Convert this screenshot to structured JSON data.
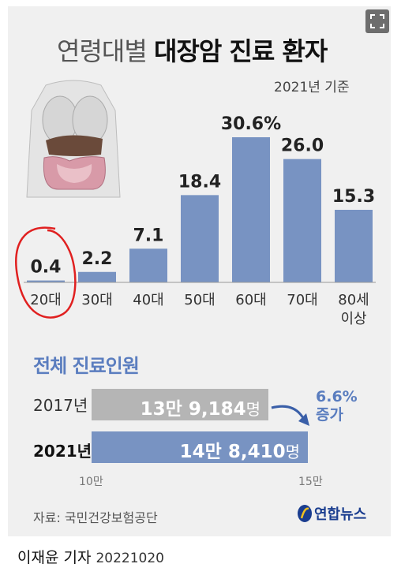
{
  "title_light": "연령대별",
  "title_bold": "대장암 진료 환자",
  "basis": "2021년 기준",
  "chart_data": [
    {
      "type": "bar",
      "title": "연령대별 대장암 진료 환자",
      "categories": [
        "20대",
        "30대",
        "40대",
        "50대",
        "60대",
        "70대",
        "80세 이상"
      ],
      "values": [
        0.4,
        2.2,
        7.1,
        18.4,
        30.6,
        26.0,
        15.3
      ],
      "value_labels": [
        "0.4",
        "2.2",
        "7.1",
        "18.4",
        "30.6%",
        "26.0",
        "15.3"
      ],
      "bar_color": "#7893c2",
      "ylim": [
        0,
        30.6
      ]
    },
    {
      "type": "bar",
      "orientation": "horizontal",
      "title": "전체 진료인원",
      "categories": [
        "2017년",
        "2021년"
      ],
      "values": [
        139184,
        148410
      ],
      "xlim": [
        100000,
        150000
      ],
      "tick_labels": [
        "10만",
        "15만"
      ],
      "bar_colors": [
        "#b5b5b5",
        "#7893c2"
      ]
    }
  ],
  "total": {
    "title": "전체 진료인원",
    "rows": [
      {
        "year": "2017년",
        "value_text": "13만 9,184",
        "unit": "명"
      },
      {
        "year": "2021년",
        "value_text": "14만 8,410",
        "unit": "명"
      }
    ],
    "ticks": [
      "10만",
      "15만"
    ],
    "increase_pct": "6.6%",
    "increase_label": "증가"
  },
  "source": "자료: 국민건강보험공단",
  "logo": "연합뉴스",
  "credit_author": "이재윤 기자",
  "credit_date": "20221020",
  "colors": {
    "accent": "#5a7dbf",
    "bar": "#7893c2",
    "annotation": "#e02020"
  }
}
